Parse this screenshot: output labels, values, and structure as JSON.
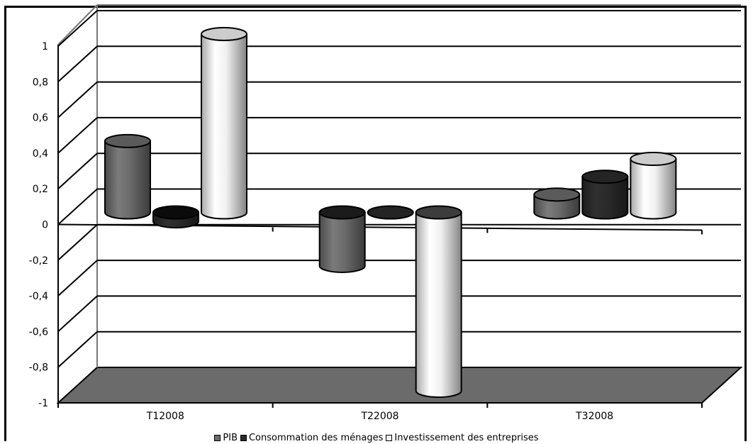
{
  "chart_data": {
    "type": "bar",
    "style": "3d-cylinder",
    "categories": [
      "T12008",
      "T22008",
      "T32008"
    ],
    "series": [
      {
        "name": "PIB",
        "values": [
          0.4,
          -0.3,
          0.1
        ],
        "color": "#6b6b6b"
      },
      {
        "name": "Consommation des ménages",
        "values": [
          -0.05,
          0.0,
          0.2
        ],
        "color": "#2a2a2a"
      },
      {
        "name": "Investissement des entreprises",
        "values": [
          1.0,
          -1.0,
          0.3
        ],
        "color": "#f0f0f0"
      }
    ],
    "y_ticks": [
      "1",
      "0,8",
      "0,6",
      "0,4",
      "0,2",
      "0",
      "-0,2",
      "-0,4",
      "-0,6",
      "-0,8",
      "-1"
    ],
    "ylim": [
      -1,
      1
    ],
    "grid": true,
    "legend_position": "bottom",
    "floor_color": "#6b6b6b"
  }
}
